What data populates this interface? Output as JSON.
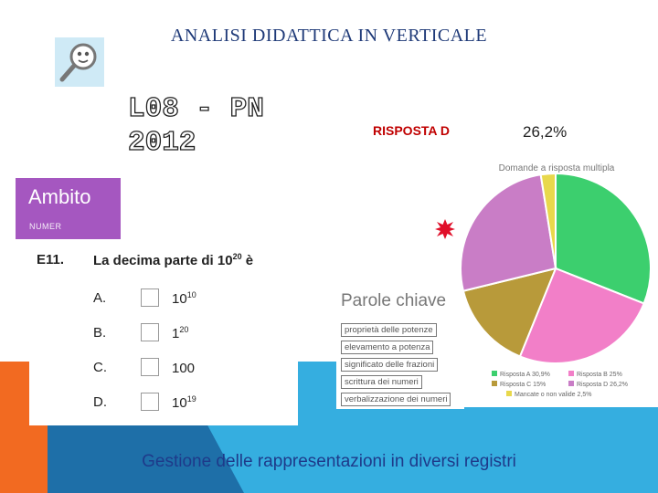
{
  "page": {
    "title": "ANALISI DIDATTICA IN VERTICALE",
    "code_line1": "L08 - PN",
    "code_line2": "2012",
    "answer_label": "RISPOSTA D",
    "answer_value": "26,2%",
    "subtitle": "Gestione delle rappresentazioni in diversi registri"
  },
  "ambito": {
    "title": "Ambito",
    "subtitle": "NUMER"
  },
  "question": {
    "number": "E11.",
    "text_before": "La decima parte di 10",
    "text_exp": "20",
    "text_after": " è",
    "options": [
      {
        "letter": "A.",
        "base": "10",
        "exp": "10"
      },
      {
        "letter": "B.",
        "base": "1",
        "exp": "20"
      },
      {
        "letter": "C.",
        "base": "100",
        "exp": ""
      },
      {
        "letter": "D.",
        "base": "10",
        "exp": "19"
      }
    ]
  },
  "keywords": {
    "title": "Parole chiave",
    "items": [
      "proprietà delle potenze",
      "elevamento a potenza",
      "significato delle frazioni",
      "scrittura dei numeri",
      "verbalizzazione dei numeri"
    ]
  },
  "chart_data": {
    "type": "pie",
    "title": "Domande a risposta multipla",
    "series": [
      {
        "name": "Risposta A 30,9%",
        "value": 30.9,
        "color": "#3ccf6e"
      },
      {
        "name": "Risposta B 25%",
        "value": 25.0,
        "color": "#f27fc8"
      },
      {
        "name": "Risposta C 15%",
        "value": 15.0,
        "color": "#b89a3a"
      },
      {
        "name": "Risposta D 26,2%",
        "value": 26.2,
        "color": "#c97dc6"
      },
      {
        "name": "Mancate o non valide 2,5%",
        "value": 2.5,
        "color": "#e8d84c"
      }
    ],
    "legend": "bottom"
  },
  "colors": {
    "accent_red": "#c00000",
    "ambito_purple": "#a557c0",
    "band_blue": "#35aee0",
    "band_orange": "#f26a21",
    "title_blue": "#1f3a78"
  }
}
